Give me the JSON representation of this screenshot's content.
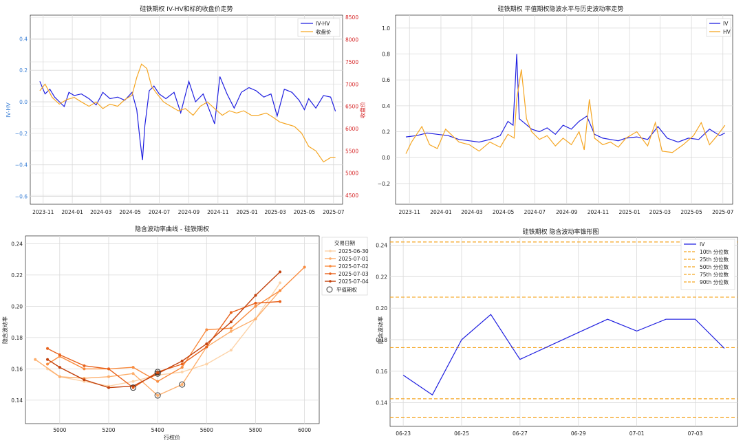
{
  "chart_data": [
    {
      "type": "line",
      "title": "硅铁期权 IV-HV和标的收盘价走势",
      "ylabel": "IV-HV",
      "y2label": "收盘价",
      "x_ticks": [
        "2023-11",
        "2024-01",
        "2024-03",
        "2024-05",
        "2024-07",
        "2024-09",
        "2024-11",
        "2025-01",
        "2025-03",
        "2025-05",
        "2025-07"
      ],
      "y_ticks": [
        "−0.6",
        "−0.4",
        "−0.2",
        "0.0",
        "0.2",
        "0.4"
      ],
      "y2_ticks": [
        "4500",
        "5000",
        "5500",
        "6000",
        "6500",
        "7000",
        "7500",
        "8000",
        "8500"
      ],
      "ylim": [
        -0.65,
        0.55
      ],
      "y2lim": [
        4300,
        8550
      ],
      "legend_position": "top-right",
      "series": [
        {
          "name": "IV-HV",
          "color": "#1f1fe0",
          "axis": "left",
          "x": [
            "2023-10-25",
            "2023-11-05",
            "2023-11-15",
            "2023-11-25",
            "2023-12-05",
            "2023-12-15",
            "2023-12-25",
            "2024-01-05",
            "2024-01-20",
            "2024-02-05",
            "2024-02-20",
            "2024-03-05",
            "2024-03-20",
            "2024-04-05",
            "2024-04-20",
            "2024-05-05",
            "2024-05-15",
            "2024-05-22",
            "2024-05-27",
            "2024-06-01",
            "2024-06-10",
            "2024-06-20",
            "2024-07-01",
            "2024-07-15",
            "2024-08-01",
            "2024-08-15",
            "2024-09-01",
            "2024-09-15",
            "2024-10-01",
            "2024-10-15",
            "2024-10-25",
            "2024-11-05",
            "2024-11-20",
            "2024-12-05",
            "2024-12-20",
            "2025-01-05",
            "2025-01-20",
            "2025-02-05",
            "2025-02-20",
            "2025-03-05",
            "2025-03-20",
            "2025-04-05",
            "2025-04-20",
            "2025-05-01",
            "2025-05-10",
            "2025-05-25",
            "2025-06-10",
            "2025-06-25",
            "2025-07-05"
          ],
          "y": [
            0.13,
            0.05,
            0.08,
            0.03,
            0.0,
            -0.03,
            0.06,
            0.04,
            0.05,
            0.02,
            -0.02,
            0.06,
            0.02,
            0.03,
            0.01,
            0.06,
            -0.05,
            -0.25,
            -0.37,
            -0.15,
            0.07,
            0.1,
            0.05,
            0.02,
            0.06,
            -0.07,
            0.13,
            0.0,
            0.05,
            -0.06,
            -0.14,
            0.16,
            0.05,
            -0.04,
            0.06,
            0.09,
            0.07,
            0.03,
            0.05,
            -0.09,
            0.08,
            0.06,
            0.01,
            -0.05,
            0.02,
            -0.04,
            0.04,
            0.03,
            -0.06
          ]
        },
        {
          "name": "收盘价",
          "color": "#f5a623",
          "axis": "right",
          "x": [
            "2023-10-25",
            "2023-11-05",
            "2023-11-20",
            "2023-12-05",
            "2023-12-20",
            "2024-01-05",
            "2024-01-20",
            "2024-02-05",
            "2024-02-20",
            "2024-03-05",
            "2024-03-20",
            "2024-04-05",
            "2024-04-20",
            "2024-05-05",
            "2024-05-15",
            "2024-05-25",
            "2024-06-05",
            "2024-06-15",
            "2024-06-25",
            "2024-07-10",
            "2024-07-25",
            "2024-08-10",
            "2024-08-25",
            "2024-09-10",
            "2024-09-25",
            "2024-10-10",
            "2024-10-25",
            "2024-11-10",
            "2024-11-25",
            "2024-12-10",
            "2024-12-25",
            "2025-01-10",
            "2025-01-25",
            "2025-02-10",
            "2025-02-25",
            "2025-03-10",
            "2025-03-25",
            "2025-04-10",
            "2025-04-25",
            "2025-05-10",
            "2025-05-25",
            "2025-06-10",
            "2025-06-25",
            "2025-07-05"
          ],
          "y": [
            6850,
            7000,
            6700,
            6550,
            6650,
            6700,
            6600,
            6500,
            6600,
            6450,
            6550,
            6500,
            6650,
            6750,
            7150,
            7450,
            7350,
            6950,
            6800,
            6600,
            6500,
            6400,
            6450,
            6300,
            6500,
            6600,
            6450,
            6300,
            6400,
            6350,
            6400,
            6300,
            6300,
            6350,
            6250,
            6150,
            6100,
            6050,
            5900,
            5600,
            5500,
            5250,
            5350,
            5350
          ]
        }
      ]
    },
    {
      "type": "line",
      "title": "硅铁期权 平值期权隐波水平与历史波动率走势",
      "x_ticks": [
        "2023-11",
        "2024-01",
        "2024-03",
        "2024-05",
        "2024-07",
        "2024-09",
        "2024-11",
        "2025-01",
        "2025-03",
        "2025-05",
        "2025-07"
      ],
      "y_ticks": [
        "−0.2",
        "0.0",
        "0.2",
        "0.4",
        "0.6",
        "0.8",
        "1.0"
      ],
      "ylim": [
        -0.36,
        1.1
      ],
      "legend_position": "top-right",
      "series": [
        {
          "name": "IV",
          "color": "#1f1fe0",
          "x": [
            "2023-10-25",
            "2023-11-15",
            "2023-12-05",
            "2023-12-25",
            "2024-01-15",
            "2024-02-05",
            "2024-02-25",
            "2024-03-15",
            "2024-04-05",
            "2024-04-25",
            "2024-05-10",
            "2024-05-20",
            "2024-05-27",
            "2024-06-01",
            "2024-06-10",
            "2024-06-25",
            "2024-07-10",
            "2024-07-25",
            "2024-08-10",
            "2024-08-25",
            "2024-09-10",
            "2024-09-25",
            "2024-10-10",
            "2024-10-25",
            "2024-11-10",
            "2024-11-25",
            "2024-12-10",
            "2024-12-25",
            "2025-01-15",
            "2025-02-05",
            "2025-02-25",
            "2025-03-15",
            "2025-04-05",
            "2025-04-25",
            "2025-05-15",
            "2025-06-05",
            "2025-06-25",
            "2025-07-05"
          ],
          "y": [
            0.16,
            0.17,
            0.19,
            0.18,
            0.17,
            0.14,
            0.13,
            0.12,
            0.14,
            0.17,
            0.28,
            0.25,
            0.8,
            0.3,
            0.27,
            0.22,
            0.2,
            0.23,
            0.18,
            0.25,
            0.22,
            0.28,
            0.32,
            0.18,
            0.15,
            0.14,
            0.13,
            0.15,
            0.16,
            0.14,
            0.24,
            0.15,
            0.12,
            0.15,
            0.14,
            0.22,
            0.17,
            0.19
          ]
        },
        {
          "name": "HV",
          "color": "#f5a623",
          "x": [
            "2023-10-25",
            "2023-11-05",
            "2023-11-25",
            "2023-12-10",
            "2023-12-25",
            "2024-01-10",
            "2024-02-05",
            "2024-02-25",
            "2024-03-15",
            "2024-04-05",
            "2024-04-25",
            "2024-05-10",
            "2024-05-22",
            "2024-05-27",
            "2024-06-05",
            "2024-06-15",
            "2024-06-25",
            "2024-07-10",
            "2024-07-25",
            "2024-08-10",
            "2024-08-25",
            "2024-09-10",
            "2024-09-25",
            "2024-10-05",
            "2024-10-15",
            "2024-10-25",
            "2024-11-10",
            "2024-11-25",
            "2024-12-10",
            "2024-12-25",
            "2025-01-15",
            "2025-02-05",
            "2025-02-20",
            "2025-03-05",
            "2025-03-25",
            "2025-04-15",
            "2025-05-05",
            "2025-05-20",
            "2025-06-05",
            "2025-06-20",
            "2025-07-05"
          ],
          "y": [
            0.03,
            0.12,
            0.24,
            0.1,
            0.07,
            0.22,
            0.12,
            0.1,
            0.05,
            0.12,
            0.08,
            0.18,
            0.15,
            0.45,
            0.68,
            0.3,
            0.2,
            0.14,
            0.17,
            0.09,
            0.15,
            0.1,
            0.2,
            0.06,
            0.45,
            0.15,
            0.1,
            0.12,
            0.08,
            0.15,
            0.2,
            0.09,
            0.27,
            0.05,
            0.04,
            0.1,
            0.17,
            0.27,
            0.1,
            0.17,
            0.25
          ]
        }
      ]
    },
    {
      "type": "line",
      "title": "隐含波动率曲线 - 硅铁期权",
      "xlabel": "行权价",
      "ylabel": "隐含波动率",
      "x_ticks": [
        "5000",
        "5200",
        "5400",
        "5600",
        "5800",
        "6000"
      ],
      "y_ticks": [
        "0.14",
        "0.16",
        "0.18",
        "0.20",
        "0.22",
        "0.24"
      ],
      "xlim": [
        4860,
        6060
      ],
      "ylim": [
        0.125,
        0.245
      ],
      "legend_title": "交易日期",
      "legend_position": "right-outside",
      "series": [
        {
          "name": "2025-06-30",
          "color": "#fdd3a8",
          "x": [
            4950,
            5000,
            5100,
            5200,
            5300,
            5400,
            5500,
            5600,
            5700,
            5800,
            5900
          ],
          "y": [
            0.16,
            0.155,
            0.152,
            0.149,
            0.152,
            0.156,
            0.158,
            0.163,
            0.172,
            0.192,
            0.215
          ]
        },
        {
          "name": "2025-07-01",
          "color": "#fdae6b",
          "x": [
            4900,
            5000,
            5100,
            5200,
            5300,
            5400,
            5500,
            5600,
            5700,
            5800,
            5900
          ],
          "y": [
            0.166,
            0.155,
            0.154,
            0.155,
            0.157,
            0.143,
            0.15,
            0.174,
            0.184,
            0.192,
            0.21
          ]
        },
        {
          "name": "2025-07-02",
          "color": "#f98b3e",
          "x": [
            4950,
            5000,
            5100,
            5200,
            5300,
            5400,
            5500,
            5600,
            5700,
            5800,
            5900,
            6000
          ],
          "y": [
            0.163,
            0.168,
            0.16,
            0.16,
            0.161,
            0.152,
            0.161,
            0.185,
            0.186,
            0.2,
            0.21,
            0.225
          ]
        },
        {
          "name": "2025-07-03",
          "color": "#e8621c",
          "x": [
            4950,
            5000,
            5100,
            5200,
            5300,
            5400,
            5500,
            5600,
            5700,
            5800,
            5900
          ],
          "y": [
            0.173,
            0.169,
            0.162,
            0.16,
            0.148,
            0.158,
            0.163,
            0.174,
            0.196,
            0.202,
            0.203
          ]
        },
        {
          "name": "2025-07-04",
          "color": "#c2410c",
          "x": [
            4950,
            5000,
            5100,
            5200,
            5300,
            5400,
            5500,
            5600,
            5700,
            5800,
            5900
          ],
          "y": [
            0.166,
            0.161,
            0.153,
            0.148,
            0.149,
            0.157,
            0.165,
            0.176,
            0.19,
            0.207,
            0.222
          ]
        }
      ],
      "atm_label": "平值期权",
      "atm_points": [
        {
          "x": 5300,
          "y": 0.148
        },
        {
          "x": 5400,
          "y": 0.143
        },
        {
          "x": 5400,
          "y": 0.157
        },
        {
          "x": 5400,
          "y": 0.158
        },
        {
          "x": 5500,
          "y": 0.15
        }
      ]
    },
    {
      "type": "line",
      "title": "硅铁期权 隐含波动率锥形图",
      "ylabel": "隐含波动率",
      "x_ticks": [
        "06-23",
        "06-25",
        "06-27",
        "06-29",
        "07-01",
        "07-03"
      ],
      "y_ticks": [
        "0.14",
        "0.16",
        "0.18",
        "0.20",
        "0.22",
        "0.24"
      ],
      "ylim": [
        0.125,
        0.245
      ],
      "legend_position": "top-right",
      "series": [
        {
          "name": "IV",
          "color": "#1f1fe0",
          "x": [
            "06-23",
            "06-24",
            "06-25",
            "06-26",
            "06-27",
            "06-28",
            "06-29",
            "06-30",
            "07-01",
            "07-02",
            "07-03",
            "07-04"
          ],
          "y": [
            0.1575,
            0.145,
            0.18,
            0.196,
            0.1675,
            0.176,
            0.1845,
            0.193,
            0.1855,
            0.193,
            0.193,
            0.1745
          ]
        }
      ],
      "percentiles": [
        {
          "name": "10th 分位数",
          "value": 0.1305,
          "color": "#f5a623"
        },
        {
          "name": "25th 分位数",
          "value": 0.1425,
          "color": "#f5a623"
        },
        {
          "name": "50th 分位数",
          "value": 0.175,
          "color": "#f5a623"
        },
        {
          "name": "75th 分位数",
          "value": 0.207,
          "color": "#f5a623"
        },
        {
          "name": "90th 分位数",
          "value": 0.242,
          "color": "#f5a623"
        }
      ]
    }
  ]
}
